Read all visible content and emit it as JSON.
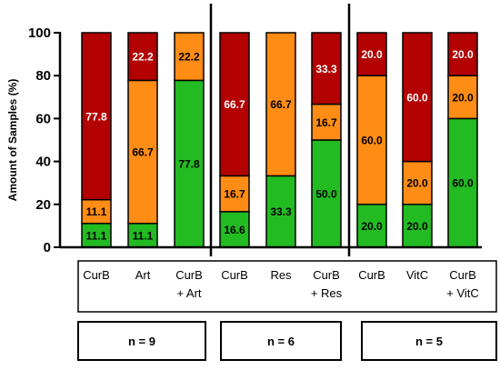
{
  "chart_data": {
    "type": "bar",
    "stacked": true,
    "ylabel": "Amount of Samples (%)",
    "ylim": [
      0,
      100
    ],
    "yticks": [
      "0",
      "20",
      "40",
      "60",
      "80",
      "100"
    ],
    "categories": [
      [
        "CurB"
      ],
      [
        "Art"
      ],
      [
        "CurB",
        "+ Art"
      ],
      [
        "CurB"
      ],
      [
        "Res"
      ],
      [
        "CurB",
        "+ Res"
      ],
      [
        "CurB"
      ],
      [
        "VitC"
      ],
      [
        "CurB",
        "+  VitC"
      ]
    ],
    "series": [
      {
        "color": "#22bb22",
        "values": [
          11.1,
          11.1,
          77.8,
          16.6,
          33.3,
          50.0,
          20.0,
          20.0,
          60.0
        ],
        "labels": [
          "11.1",
          "11.1",
          "77.8",
          "16.6",
          "33.3",
          "50.0",
          "20.0",
          "20.0",
          "60.0"
        ],
        "label_color": "#000000"
      },
      {
        "color": "#ff8c14",
        "values": [
          11.1,
          66.7,
          22.2,
          16.7,
          66.7,
          16.7,
          60.0,
          20.0,
          20.0
        ],
        "labels": [
          "11.1",
          "66.7",
          "22.2",
          "16.7",
          "66.7",
          "16.7",
          "60.0",
          "20.0",
          "20.0"
        ],
        "label_color": "#000000"
      },
      {
        "color": "#b30000",
        "values": [
          77.8,
          22.2,
          0,
          66.7,
          0,
          33.3,
          20.0,
          60.0,
          20.0
        ],
        "labels": [
          "77.8",
          "22.2",
          "",
          "66.7",
          "",
          "33.3",
          "20.0",
          "60.0",
          "20.0"
        ],
        "label_color": "#ffffff"
      }
    ],
    "groups": [
      {
        "label": "n = 9",
        "start": 0,
        "end": 2
      },
      {
        "label": "n = 6",
        "start": 3,
        "end": 5
      },
      {
        "label": "n = 5",
        "start": 6,
        "end": 8
      }
    ],
    "grid": false,
    "legend": "none"
  }
}
